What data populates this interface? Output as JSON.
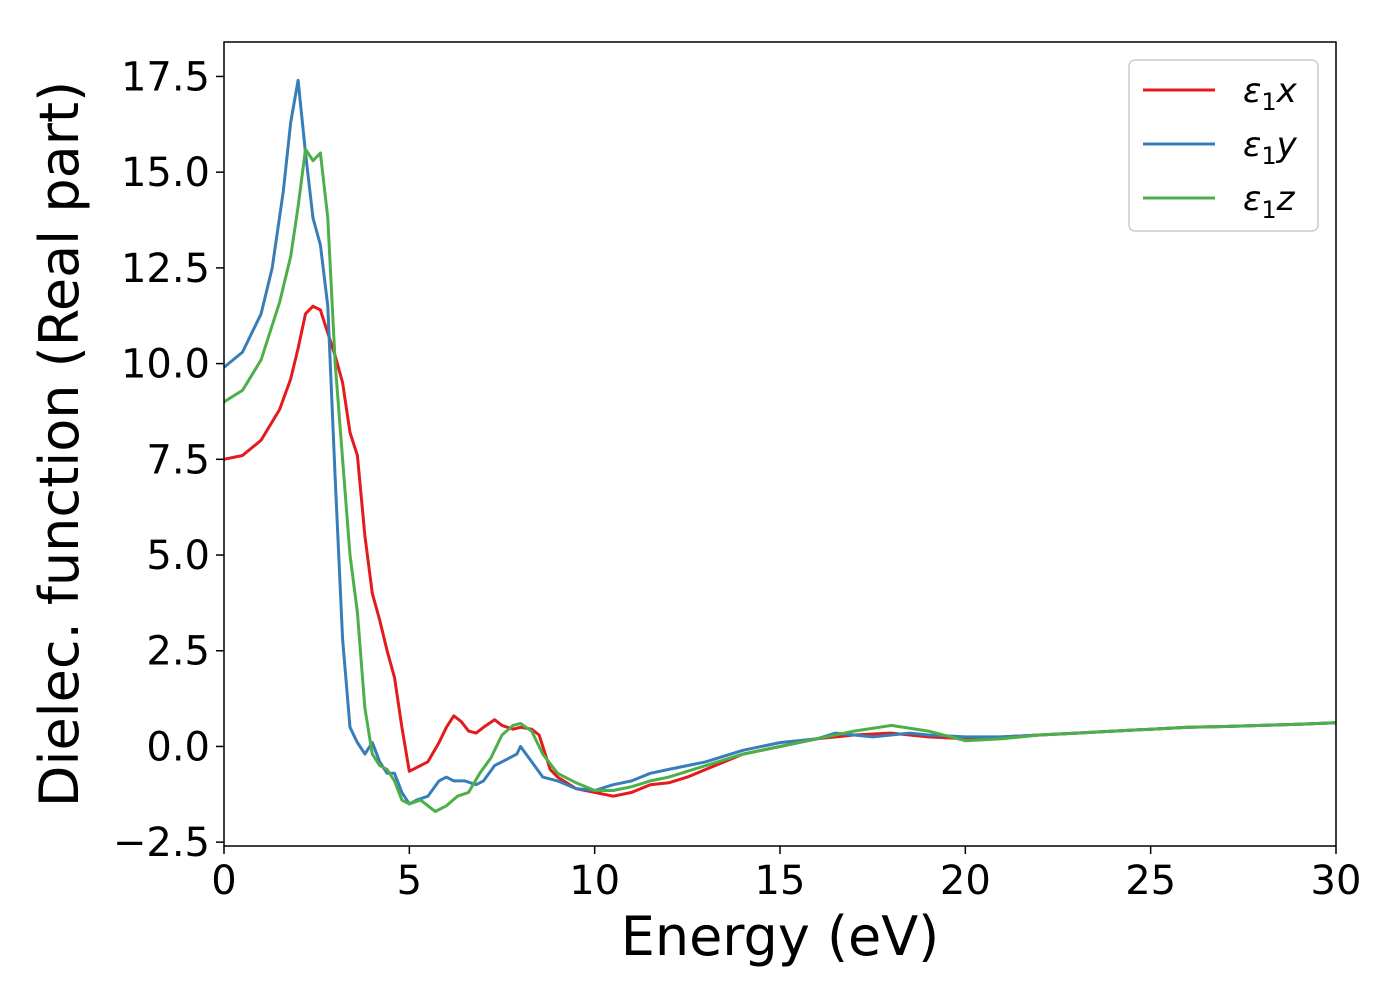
{
  "chart_data": {
    "type": "line",
    "title": "",
    "xlabel": "Energy (eV)",
    "ylabel": "Dielec. function (Real part)",
    "xlim": [
      0,
      30
    ],
    "ylim": [
      -2.6,
      18.4
    ],
    "xticks": [
      0,
      5,
      10,
      15,
      20,
      25,
      30
    ],
    "xtick_labels": [
      "0",
      "5",
      "10",
      "15",
      "20",
      "25",
      "30"
    ],
    "yticks": [
      -2.5,
      0.0,
      2.5,
      5.0,
      7.5,
      10.0,
      12.5,
      15.0,
      17.5
    ],
    "ytick_labels": [
      "−2.5",
      "0.0",
      "2.5",
      "5.0",
      "7.5",
      "10.0",
      "12.5",
      "15.0",
      "17.5"
    ],
    "grid": false,
    "legend_position": "top-right",
    "series": [
      {
        "name": "ε₁x",
        "legend": {
          "symbol": "ε",
          "sub": "1",
          "suffix": "x"
        },
        "color": "#e41a1c",
        "x": [
          0,
          0.5,
          1.0,
          1.5,
          1.8,
          2.0,
          2.2,
          2.4,
          2.6,
          2.8,
          3.0,
          3.2,
          3.4,
          3.6,
          3.8,
          4.0,
          4.2,
          4.4,
          4.6,
          4.8,
          5.0,
          5.2,
          5.5,
          5.8,
          6.0,
          6.2,
          6.4,
          6.6,
          6.8,
          7.0,
          7.3,
          7.5,
          7.8,
          8.0,
          8.3,
          8.5,
          8.8,
          9.0,
          9.5,
          10.0,
          10.5,
          11.0,
          11.5,
          12.0,
          12.5,
          13.0,
          14.0,
          15.0,
          16.0,
          17.0,
          18.0,
          19.0,
          20.0,
          21.0,
          22.0,
          23.0,
          24.0,
          25.0,
          26.0,
          27.0,
          28.0,
          29.0,
          30.0
        ],
        "y": [
          7.5,
          7.6,
          8.0,
          8.8,
          9.6,
          10.4,
          11.3,
          11.5,
          11.4,
          10.8,
          10.2,
          9.5,
          8.2,
          7.6,
          5.5,
          4.0,
          3.3,
          2.5,
          1.8,
          0.5,
          -0.65,
          -0.55,
          -0.4,
          0.1,
          0.5,
          0.8,
          0.65,
          0.4,
          0.35,
          0.5,
          0.7,
          0.55,
          0.45,
          0.5,
          0.45,
          0.3,
          -0.6,
          -0.8,
          -1.1,
          -1.2,
          -1.3,
          -1.2,
          -1.0,
          -0.95,
          -0.8,
          -0.6,
          -0.2,
          0.0,
          0.2,
          0.3,
          0.35,
          0.25,
          0.2,
          0.25,
          0.3,
          0.35,
          0.4,
          0.45,
          0.5,
          0.52,
          0.55,
          0.58,
          0.62
        ]
      },
      {
        "name": "ε₁y",
        "legend": {
          "symbol": "ε",
          "sub": "1",
          "suffix": "y"
        },
        "color": "#377eb8",
        "x": [
          0,
          0.5,
          1.0,
          1.3,
          1.6,
          1.8,
          2.0,
          2.2,
          2.4,
          2.6,
          2.8,
          3.0,
          3.2,
          3.4,
          3.5,
          3.6,
          3.8,
          4.0,
          4.2,
          4.4,
          4.6,
          4.8,
          5.0,
          5.2,
          5.5,
          5.8,
          6.0,
          6.2,
          6.5,
          6.8,
          7.0,
          7.3,
          7.6,
          7.9,
          8.0,
          8.3,
          8.6,
          9.0,
          9.5,
          10.0,
          10.5,
          11.0,
          11.5,
          12.0,
          12.5,
          13.0,
          14.0,
          15.0,
          16.0,
          16.5,
          17.0,
          17.5,
          18.0,
          18.5,
          19.0,
          20.0,
          21.0,
          22.0,
          23.0,
          24.0,
          25.0,
          26.0,
          27.0,
          28.0,
          29.0,
          30.0
        ],
        "y": [
          9.9,
          10.3,
          11.3,
          12.5,
          14.5,
          16.3,
          17.4,
          15.5,
          13.8,
          13.1,
          11.5,
          7.0,
          2.8,
          0.5,
          0.3,
          0.1,
          -0.2,
          0.1,
          -0.4,
          -0.7,
          -0.7,
          -1.2,
          -1.5,
          -1.4,
          -1.3,
          -0.9,
          -0.8,
          -0.9,
          -0.9,
          -1.0,
          -0.9,
          -0.5,
          -0.35,
          -0.2,
          0.0,
          -0.4,
          -0.8,
          -0.9,
          -1.1,
          -1.15,
          -1.0,
          -0.9,
          -0.7,
          -0.6,
          -0.5,
          -0.4,
          -0.1,
          0.1,
          0.2,
          0.35,
          0.3,
          0.25,
          0.3,
          0.35,
          0.3,
          0.25,
          0.25,
          0.3,
          0.35,
          0.4,
          0.45,
          0.5,
          0.52,
          0.55,
          0.58,
          0.62
        ]
      },
      {
        "name": "ε₁z",
        "legend": {
          "symbol": "ε",
          "sub": "1",
          "suffix": "z"
        },
        "color": "#4daf4a",
        "x": [
          0,
          0.5,
          1.0,
          1.5,
          1.8,
          2.0,
          2.2,
          2.4,
          2.6,
          2.8,
          3.0,
          3.2,
          3.4,
          3.6,
          3.8,
          4.0,
          4.2,
          4.4,
          4.6,
          4.8,
          5.0,
          5.3,
          5.7,
          6.0,
          6.3,
          6.6,
          6.9,
          7.2,
          7.5,
          7.8,
          8.0,
          8.3,
          8.6,
          9.0,
          9.5,
          10.0,
          10.5,
          11.0,
          11.5,
          12.0,
          12.5,
          13.0,
          14.0,
          15.0,
          16.0,
          17.0,
          18.0,
          19.0,
          20.0,
          21.0,
          22.0,
          23.0,
          24.0,
          25.0,
          26.0,
          27.0,
          28.0,
          29.0,
          30.0
        ],
        "y": [
          9.0,
          9.3,
          10.1,
          11.6,
          12.8,
          14.1,
          15.6,
          15.3,
          15.5,
          13.8,
          10.0,
          7.5,
          5.0,
          3.5,
          1.0,
          -0.2,
          -0.5,
          -0.6,
          -0.9,
          -1.4,
          -1.5,
          -1.4,
          -1.7,
          -1.55,
          -1.3,
          -1.2,
          -0.7,
          -0.3,
          0.3,
          0.55,
          0.6,
          0.4,
          -0.2,
          -0.7,
          -0.95,
          -1.15,
          -1.15,
          -1.05,
          -0.9,
          -0.8,
          -0.65,
          -0.5,
          -0.2,
          0.0,
          0.2,
          0.4,
          0.55,
          0.4,
          0.15,
          0.2,
          0.3,
          0.35,
          0.4,
          0.45,
          0.5,
          0.52,
          0.55,
          0.58,
          0.62
        ]
      }
    ]
  }
}
